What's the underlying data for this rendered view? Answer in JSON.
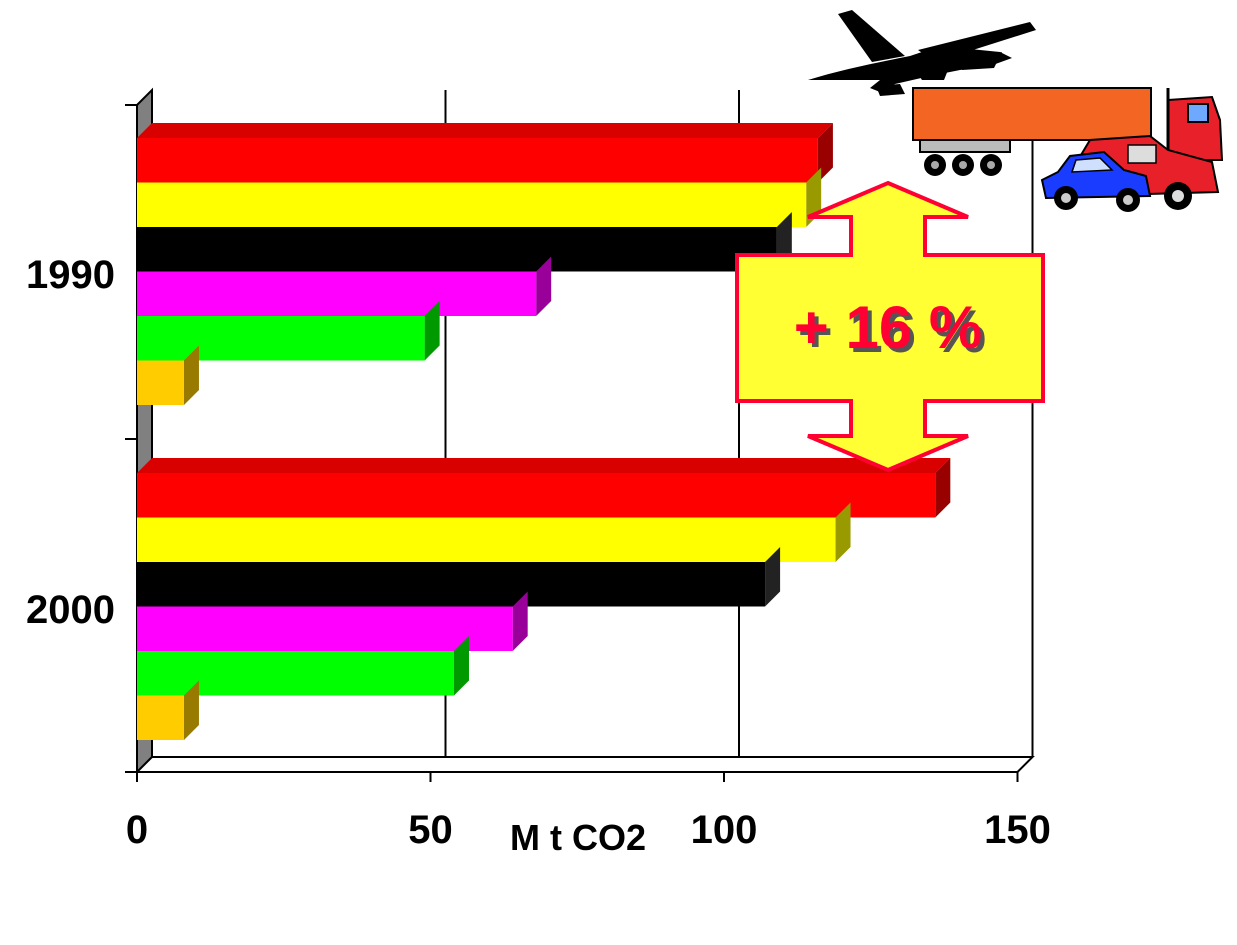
{
  "chart_data": {
    "type": "bar",
    "orientation": "horizontal",
    "style": "3d",
    "title": "",
    "xlabel": "M t CO2",
    "ylabel": "",
    "categories": [
      "1990",
      "2000"
    ],
    "xlim": [
      0,
      150
    ],
    "xticks": [
      "0",
      "50",
      "100",
      "150"
    ],
    "grid": true,
    "legend": "none",
    "series_colors": [
      "#ff0000",
      "#ffff00",
      "#000000",
      "#ff00ff",
      "#00ff00",
      "#ffcc00"
    ],
    "series": [
      {
        "values": [
          116,
          136
        ]
      },
      {
        "values": [
          114,
          119
        ]
      },
      {
        "values": [
          109,
          107
        ]
      },
      {
        "values": [
          68,
          64
        ]
      },
      {
        "values": [
          49,
          54
        ]
      },
      {
        "values": [
          8,
          8
        ]
      }
    ],
    "annotation": {
      "text": "+ 16 %",
      "fill": "#ffff33",
      "stroke": "#ff0033",
      "text_color": "#ff0033"
    },
    "illustrations": [
      "airplane-icon",
      "truck-icon",
      "car-icon",
      "van-icon"
    ]
  }
}
